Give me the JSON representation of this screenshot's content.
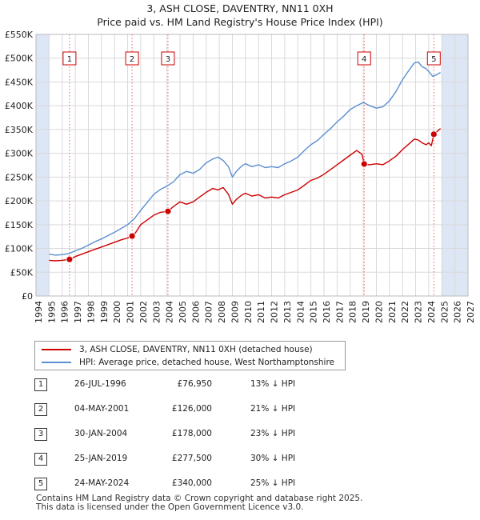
{
  "title_line1": "3, ASH CLOSE, DAVENTRY, NN11 0XH",
  "title_line2": "Price paid vs. HM Land Registry's House Price Index (HPI)",
  "legend": {
    "property": "3, ASH CLOSE, DAVENTRY, NN11 0XH (detached house)",
    "hpi": "HPI: Average price, detached house, West Northamptonshire"
  },
  "sales": [
    {
      "num": "1",
      "date": "26-JUL-1996",
      "price": "£76,950",
      "hpi": "13% ↓ HPI"
    },
    {
      "num": "2",
      "date": "04-MAY-2001",
      "price": "£126,000",
      "hpi": "21% ↓ HPI"
    },
    {
      "num": "3",
      "date": "30-JAN-2004",
      "price": "£178,000",
      "hpi": "23% ↓ HPI"
    },
    {
      "num": "4",
      "date": "25-JAN-2019",
      "price": "£277,500",
      "hpi": "30% ↓ HPI"
    },
    {
      "num": "5",
      "date": "24-MAY-2024",
      "price": "£340,000",
      "hpi": "25% ↓ HPI"
    }
  ],
  "footer": {
    "line1": "Contains HM Land Registry data © Crown copyright and database right 2025.",
    "line2": "This data is licensed under the Open Government Licence v3.0."
  },
  "colors": {
    "property": "#cc0000",
    "hpi": "#5b8fd0",
    "grid": "#d9d9d9",
    "shade": "#dde6f5"
  },
  "chart_data": {
    "type": "line",
    "title": "3, ASH CLOSE, DAVENTRY, NN11 0XH — Price paid vs. HM Land Registry's House Price Index (HPI)",
    "xlabel": "",
    "ylabel": "",
    "xlim": [
      1994,
      2027
    ],
    "ylim": [
      0,
      550000
    ],
    "x_ticks": [
      "1994",
      "1995",
      "1996",
      "1997",
      "1998",
      "1999",
      "2000",
      "2001",
      "2002",
      "2003",
      "2004",
      "2005",
      "2006",
      "2007",
      "2008",
      "2009",
      "2010",
      "2011",
      "2012",
      "2013",
      "2014",
      "2015",
      "2016",
      "2017",
      "2018",
      "2019",
      "2020",
      "2021",
      "2022",
      "2023",
      "2024",
      "2025",
      "2026",
      "2027"
    ],
    "y_ticks": [
      {
        "value": 0,
        "label": "£0"
      },
      {
        "value": 50000,
        "label": "£50K"
      },
      {
        "value": 100000,
        "label": "£100K"
      },
      {
        "value": 150000,
        "label": "£150K"
      },
      {
        "value": 200000,
        "label": "£200K"
      },
      {
        "value": 250000,
        "label": "£250K"
      },
      {
        "value": 300000,
        "label": "£300K"
      },
      {
        "value": 350000,
        "label": "£350K"
      },
      {
        "value": 400000,
        "label": "£400K"
      },
      {
        "value": 450000,
        "label": "£450K"
      },
      {
        "value": 500000,
        "label": "£500K"
      },
      {
        "value": 550000,
        "label": "£550K"
      }
    ],
    "shaded_ranges": [
      [
        1994,
        1995.0
      ],
      [
        2025.0,
        2027
      ]
    ],
    "series": [
      {
        "name": "3, ASH CLOSE, DAVENTRY, NN11 0XH (detached house)",
        "x": [
          1995.0,
          1995.5,
          1996.0,
          1996.56,
          1997.0,
          1997.5,
          1998.0,
          1998.5,
          1999.0,
          1999.5,
          2000.0,
          2000.5,
          2001.0,
          2001.34,
          2001.6,
          2002.0,
          2002.5,
          2003.0,
          2003.5,
          2004.08,
          2004.5,
          2005.0,
          2005.5,
          2006.0,
          2006.5,
          2007.0,
          2007.5,
          2007.9,
          2008.3,
          2008.7,
          2009.0,
          2009.3,
          2009.7,
          2010.0,
          2010.5,
          2011.0,
          2011.5,
          2012.0,
          2012.5,
          2013.0,
          2013.5,
          2014.0,
          2014.5,
          2015.0,
          2015.5,
          2016.0,
          2016.5,
          2017.0,
          2017.5,
          2018.0,
          2018.5,
          2018.9,
          2019.07,
          2019.5,
          2020.0,
          2020.5,
          2021.0,
          2021.5,
          2022.0,
          2022.5,
          2022.9,
          2023.2,
          2023.5,
          2023.8,
          2024.0,
          2024.2,
          2024.39,
          2024.6,
          2024.9
        ],
        "y": [
          75000,
          74000,
          75000,
          76950,
          83000,
          88000,
          93000,
          98000,
          103000,
          108000,
          113000,
          118000,
          122000,
          126000,
          133000,
          150000,
          160000,
          170000,
          176000,
          178000,
          188000,
          198000,
          193000,
          198000,
          208000,
          218000,
          226000,
          223000,
          228000,
          214000,
          193000,
          203000,
          212000,
          216000,
          210000,
          213000,
          206000,
          208000,
          206000,
          213000,
          218000,
          223000,
          233000,
          243000,
          248000,
          256000,
          266000,
          276000,
          286000,
          296000,
          306000,
          298000,
          277500,
          276000,
          278000,
          276000,
          284000,
          294000,
          308000,
          320000,
          330000,
          328000,
          322000,
          318000,
          322000,
          316000,
          340000,
          345000,
          352000
        ]
      },
      {
        "name": "HPI: Average price, detached house, West Northamptonshire",
        "x": [
          1995.0,
          1995.5,
          1996.0,
          1996.5,
          1997.0,
          1997.5,
          1998.0,
          1998.5,
          1999.0,
          1999.5,
          2000.0,
          2000.5,
          2001.0,
          2001.5,
          2002.0,
          2002.5,
          2003.0,
          2003.5,
          2004.0,
          2004.5,
          2005.0,
          2005.5,
          2006.0,
          2006.5,
          2007.0,
          2007.5,
          2007.9,
          2008.3,
          2008.7,
          2009.0,
          2009.3,
          2009.7,
          2010.0,
          2010.5,
          2011.0,
          2011.5,
          2012.0,
          2012.5,
          2013.0,
          2013.5,
          2014.0,
          2014.5,
          2015.0,
          2015.5,
          2016.0,
          2016.5,
          2017.0,
          2017.5,
          2018.0,
          2018.5,
          2019.0,
          2019.5,
          2020.0,
          2020.5,
          2021.0,
          2021.5,
          2022.0,
          2022.5,
          2022.9,
          2023.2,
          2023.5,
          2023.8,
          2024.0,
          2024.3,
          2024.6,
          2024.9
        ],
        "y": [
          88000,
          86000,
          87000,
          89000,
          95000,
          100000,
          107000,
          114000,
          120000,
          127000,
          134000,
          142000,
          150000,
          162000,
          180000,
          197000,
          214000,
          224000,
          231000,
          240000,
          255000,
          262000,
          258000,
          266000,
          280000,
          288000,
          292000,
          285000,
          272000,
          250000,
          262000,
          273000,
          278000,
          272000,
          276000,
          270000,
          272000,
          270000,
          278000,
          284000,
          292000,
          306000,
          318000,
          327000,
          340000,
          352000,
          366000,
          378000,
          392000,
          400000,
          407000,
          400000,
          395000,
          398000,
          410000,
          430000,
          455000,
          475000,
          490000,
          492000,
          482000,
          478000,
          472000,
          462000,
          465000,
          470000
        ]
      }
    ],
    "sale_markers": [
      {
        "label": "1",
        "x": 1996.56,
        "y": 76950
      },
      {
        "label": "2",
        "x": 2001.34,
        "y": 126000
      },
      {
        "label": "3",
        "x": 2004.08,
        "y": 178000
      },
      {
        "label": "4",
        "x": 2019.07,
        "y": 277500
      },
      {
        "label": "5",
        "x": 2024.39,
        "y": 340000
      }
    ]
  }
}
